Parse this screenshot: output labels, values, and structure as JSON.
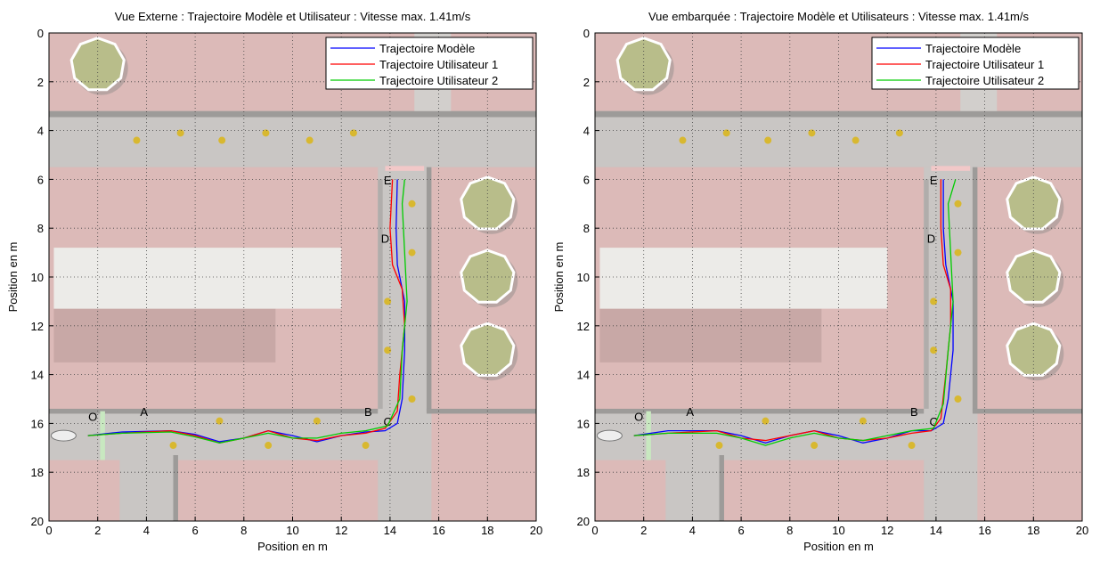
{
  "chart_data": [
    {
      "type": "line",
      "title": "Vue Externe : Trajectoire Modèle et Utilisateur : Vitesse max. 1.41m/s",
      "x_label": "Position en m",
      "y_label": "Position en m",
      "xlim": [
        0,
        20
      ],
      "ylim": [
        0,
        20
      ],
      "y_inverted": true,
      "xticks": [
        0,
        2,
        4,
        6,
        8,
        10,
        12,
        14,
        16,
        18,
        20
      ],
      "yticks": [
        0,
        2,
        4,
        6,
        8,
        10,
        12,
        14,
        16,
        18,
        20
      ],
      "grid": true,
      "legend": "upper right",
      "annotations": [
        "O",
        "A",
        "B",
        "C",
        "D",
        "E"
      ],
      "series": [
        {
          "name": "Trajectoire Modèle",
          "color": "#0000ff",
          "x": [
            1.6,
            3,
            5,
            6,
            7,
            8,
            9,
            10,
            11,
            12,
            13,
            13.8,
            14.3,
            14.5,
            14.6,
            14.6,
            14.3,
            14.25,
            14.3
          ],
          "values": [
            16.5,
            16.35,
            16.3,
            16.45,
            16.75,
            16.6,
            16.3,
            16.5,
            16.75,
            16.5,
            16.35,
            16.3,
            16,
            15,
            13,
            11,
            9.5,
            8,
            6
          ]
        },
        {
          "name": "Trajectoire Utilisateur 1",
          "color": "#ff0000",
          "x": [
            1.6,
            3,
            5,
            6,
            7,
            8,
            9,
            10,
            11,
            12,
            13,
            13.8,
            14.3,
            14.4,
            14.6,
            14.5,
            14.1,
            14,
            14.1
          ],
          "values": [
            16.5,
            16.4,
            16.3,
            16.5,
            16.8,
            16.6,
            16.3,
            16.6,
            16.7,
            16.5,
            16.4,
            16.2,
            15.5,
            14,
            12,
            10.5,
            9.5,
            8,
            6
          ]
        },
        {
          "name": "Trajectoire Utilisateur 2",
          "color": "#00cc00",
          "x": [
            1.6,
            3,
            5,
            6,
            7,
            8,
            9,
            10,
            11,
            12,
            13,
            13.9,
            14.4,
            14.5,
            14.7,
            14.6,
            14.5,
            14.6
          ],
          "values": [
            16.5,
            16.4,
            16.35,
            16.55,
            16.8,
            16.6,
            16.4,
            16.6,
            16.6,
            16.4,
            16.3,
            16.1,
            15,
            13,
            11,
            9,
            7,
            6
          ]
        }
      ]
    },
    {
      "type": "line",
      "title": "Vue embarquée : Trajectoire Modèle et Utilisateurs : Vitesse max. 1.41m/s",
      "x_label": "Position en m",
      "y_label": "Position en m",
      "xlim": [
        0,
        20
      ],
      "ylim": [
        0,
        20
      ],
      "y_inverted": true,
      "xticks": [
        0,
        2,
        4,
        6,
        8,
        10,
        12,
        14,
        16,
        18,
        20
      ],
      "yticks": [
        0,
        2,
        4,
        6,
        8,
        10,
        12,
        14,
        16,
        18,
        20
      ],
      "grid": true,
      "legend": "upper right",
      "annotations": [
        "O",
        "A",
        "B",
        "C",
        "D",
        "E"
      ],
      "series": [
        {
          "name": "Trajectoire Modèle",
          "color": "#0000ff",
          "x": [
            1.6,
            3,
            5,
            6,
            7,
            8,
            9,
            10,
            11,
            12,
            13,
            13.8,
            14.3,
            14.5,
            14.7,
            14.7,
            14.4,
            14.3,
            14.3
          ],
          "values": [
            16.5,
            16.3,
            16.3,
            16.5,
            16.8,
            16.5,
            16.3,
            16.5,
            16.8,
            16.6,
            16.3,
            16.3,
            16,
            15,
            13,
            11,
            9.5,
            8,
            6
          ]
        },
        {
          "name": "Trajectoire Utilisateur 1",
          "color": "#ff0000",
          "x": [
            1.6,
            3,
            5,
            6,
            7,
            8,
            9,
            10,
            11,
            12,
            13,
            13.8,
            14.2,
            14.4,
            14.6,
            14.6,
            14.3,
            14.2,
            14.2
          ],
          "values": [
            16.5,
            16.4,
            16.3,
            16.6,
            16.7,
            16.5,
            16.3,
            16.6,
            16.7,
            16.6,
            16.4,
            16.3,
            15.8,
            14,
            12,
            10.5,
            9.5,
            8,
            6
          ]
        },
        {
          "name": "Trajectoire Utilisateur 2",
          "color": "#00cc00",
          "x": [
            1.6,
            3,
            5,
            6,
            7,
            8,
            9,
            10,
            11,
            12,
            13,
            13.9,
            14.3,
            14.5,
            14.7,
            14.6,
            14.5,
            14.8
          ],
          "values": [
            16.5,
            16.4,
            16.4,
            16.6,
            16.9,
            16.6,
            16.4,
            16.6,
            16.7,
            16.5,
            16.3,
            16.2,
            15.2,
            13,
            11,
            9,
            7,
            6
          ]
        }
      ]
    }
  ]
}
